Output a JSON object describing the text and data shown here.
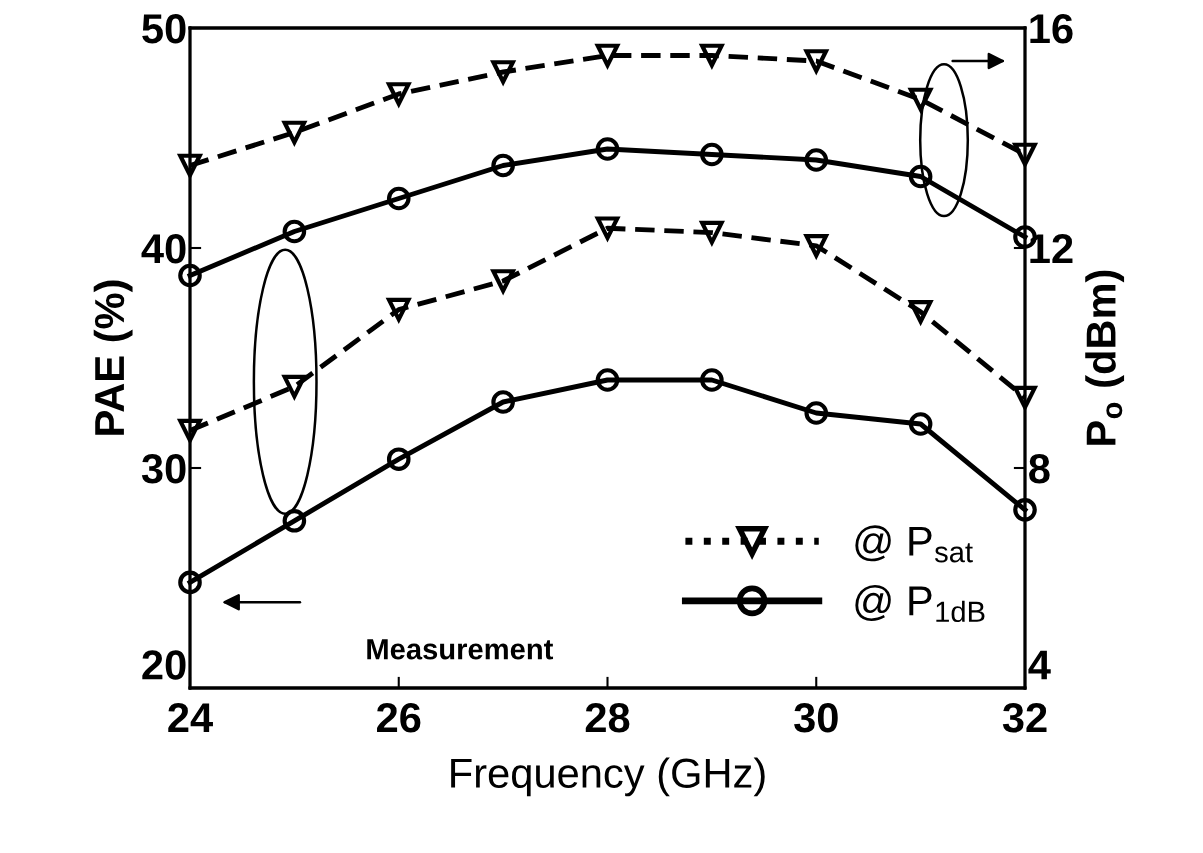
{
  "chart_data": {
    "type": "line",
    "xlabel": "Frequency (GHz)",
    "ylabel": "PAE (%)",
    "y2label": "P$_{o}$ (dBm)",
    "x": [
      24,
      25,
      26,
      27,
      28,
      29,
      30,
      31,
      32
    ],
    "xlim": [
      24,
      32
    ],
    "xticks": [
      24,
      26,
      28,
      30,
      32
    ],
    "ylim": [
      20,
      50
    ],
    "yticks": [
      20,
      30,
      40,
      50
    ],
    "y2lim": [
      4,
      16
    ],
    "y2ticks": [
      4,
      8,
      12,
      16
    ],
    "grid": false,
    "legend": "bottom right",
    "annotations": [
      "Measurement"
    ],
    "series": [
      {
        "name": "@ P$_{sat}$",
        "color": "#000000",
        "marker": "triangle",
        "line_style": "dashed",
        "values": [
          31.7,
          33.7,
          37.2,
          38.5,
          40.9,
          40.7,
          40.1,
          37.1,
          33.2
        ]
      },
      {
        "name": "@ P$_{1dB}$",
        "color": "#000000",
        "marker": "circle",
        "line_style": "solid",
        "values": [
          24.8,
          27.6,
          30.4,
          33.0,
          34.0,
          34.0,
          32.5,
          32.0,
          28.1
        ]
      },
      {
        "axis": "y2",
        "color": "#000000",
        "marker": "triangle",
        "line_style": "dashed",
        "values": [
          13.5,
          14.1,
          14.8,
          15.2,
          15.5,
          15.5,
          15.4,
          14.7,
          13.7
        ]
      },
      {
        "axis": "y2",
        "color": "#000000",
        "marker": "circle",
        "line_style": "solid",
        "values": [
          11.5,
          12.3,
          12.9,
          13.5,
          13.8,
          13.7,
          13.6,
          13.3,
          12.2
        ]
      }
    ]
  }
}
